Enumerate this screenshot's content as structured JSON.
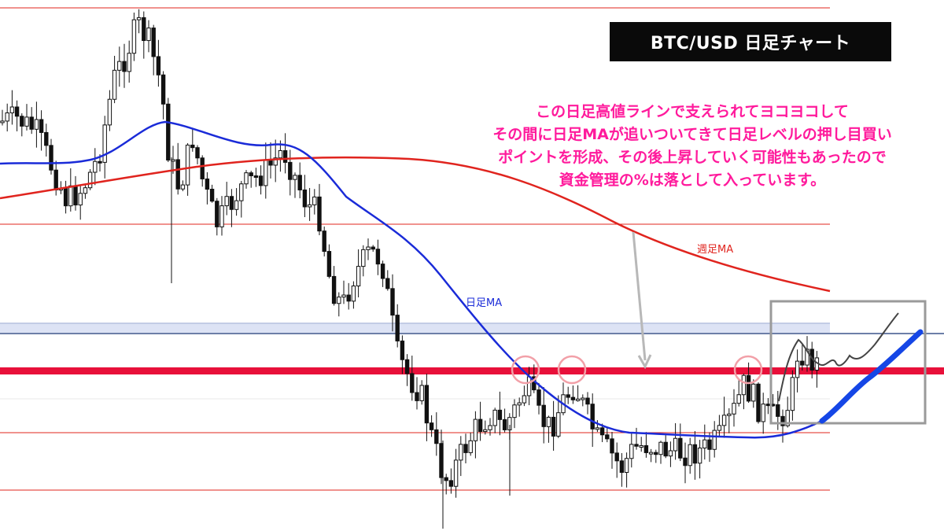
{
  "header": {
    "title": "BTC/USD  日足チャート"
  },
  "annotation": {
    "lines": [
      "この日足高値ラインで支えられてヨコヨコして",
      "その間に日足MAが追いついてきて日足レベルの押し目買い",
      "ポイントを形成、その後上昇していく可能性もあったので",
      "資金管理の%は落として入っています。"
    ]
  },
  "labels": {
    "daily_ma": "日足MA",
    "weekly_ma": "週足MA"
  },
  "colors": {
    "text_accent": "#ff1a9c",
    "daily_ma": "#1a2bd8",
    "weekly_ma": "#e0241e",
    "level_line": "#e0241e",
    "key_level": "#e8103a",
    "zone_fill": "#dde3f5",
    "zone_border": "#6d7fa8",
    "circle": "#f2a0a8",
    "box": "#9a9a9a",
    "projection_blue": "#1546e6",
    "projection_gray": "#444444",
    "candle": "#111111"
  },
  "chart_data": {
    "type": "candlestick",
    "title": "BTC/USD  日足チャート",
    "series": [
      {
        "name": "日足MA",
        "role": "daily moving average"
      },
      {
        "name": "週足MA",
        "role": "weekly moving average"
      }
    ],
    "horizontal_levels": [
      "upper resistance",
      "mid resistance",
      "support zone",
      "key level (日足高値ライン)",
      "lower level",
      "bottom level"
    ],
    "annotations": [
      "three touch circles on key level",
      "arrow pointing to key level",
      "projection box with bullish scenario"
    ]
  }
}
